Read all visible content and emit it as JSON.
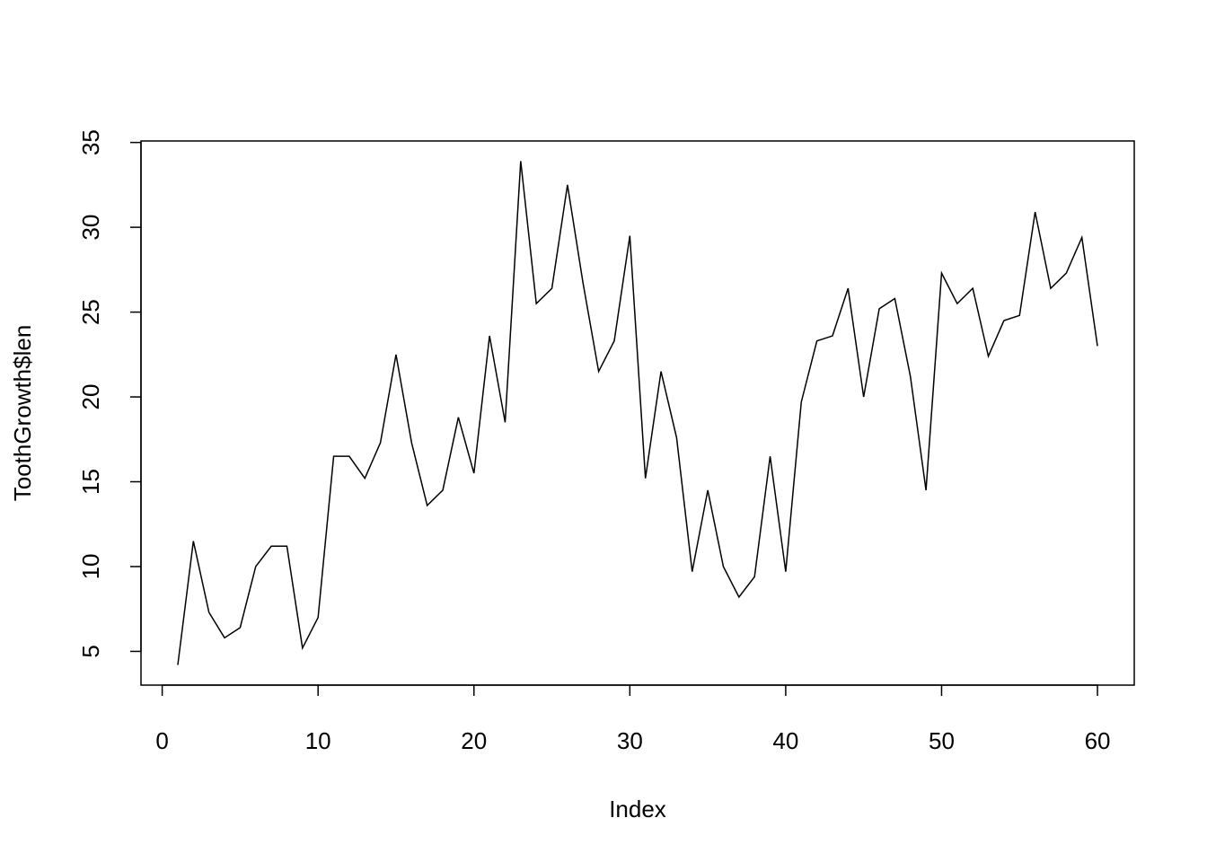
{
  "chart_data": {
    "type": "line",
    "xlabel": "Index",
    "ylabel": "ToothGrowth$len",
    "x": [
      1,
      2,
      3,
      4,
      5,
      6,
      7,
      8,
      9,
      10,
      11,
      12,
      13,
      14,
      15,
      16,
      17,
      18,
      19,
      20,
      21,
      22,
      23,
      24,
      25,
      26,
      27,
      28,
      29,
      30,
      31,
      32,
      33,
      34,
      35,
      36,
      37,
      38,
      39,
      40,
      41,
      42,
      43,
      44,
      45,
      46,
      47,
      48,
      49,
      50,
      51,
      52,
      53,
      54,
      55,
      56,
      57,
      58,
      59,
      60
    ],
    "series": [
      {
        "name": "ToothGrowth$len",
        "color": "#000000",
        "values": [
          4.2,
          11.5,
          7.3,
          5.8,
          6.4,
          10.0,
          11.2,
          11.2,
          5.2,
          7.0,
          16.5,
          16.5,
          15.2,
          17.3,
          22.5,
          17.3,
          13.6,
          14.5,
          18.8,
          15.5,
          23.6,
          18.5,
          33.9,
          25.5,
          26.4,
          32.5,
          26.7,
          21.5,
          23.3,
          29.5,
          15.2,
          21.5,
          17.6,
          9.7,
          14.5,
          10.0,
          8.2,
          9.4,
          16.5,
          9.7,
          19.7,
          23.3,
          23.6,
          26.4,
          20.0,
          25.2,
          25.8,
          21.2,
          14.5,
          27.3,
          25.5,
          26.4,
          22.4,
          24.5,
          24.8,
          30.9,
          26.4,
          27.3,
          29.4,
          23.0
        ]
      }
    ],
    "xlim": [
      -1.36,
      62.36
    ],
    "ylim": [
      3.012,
      35.088
    ],
    "xticks": [
      0,
      10,
      20,
      30,
      40,
      50,
      60
    ],
    "yticks": [
      5,
      10,
      15,
      20,
      25,
      30,
      35
    ]
  }
}
